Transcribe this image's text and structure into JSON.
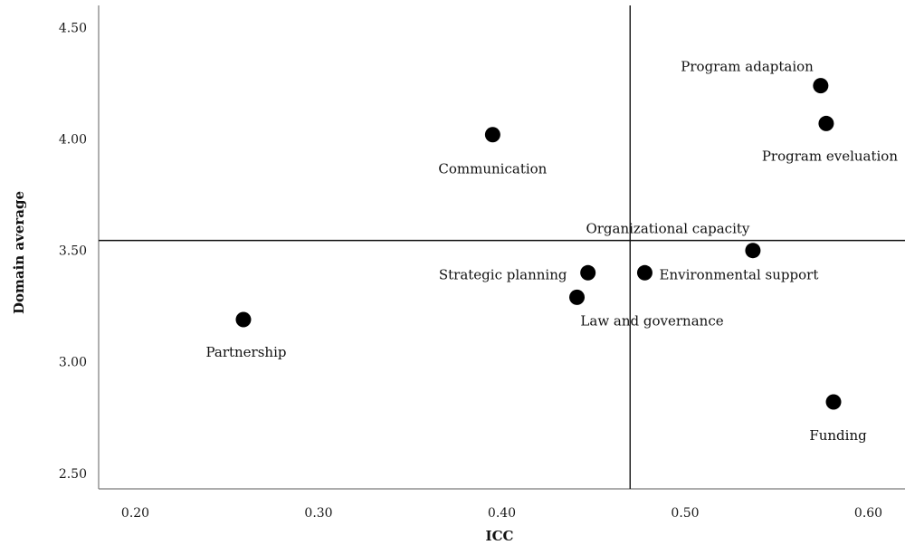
{
  "chart_data": {
    "type": "scatter",
    "xlabel": "ICC",
    "ylabel": "Domain average",
    "xlim": [
      0.18,
      0.62
    ],
    "ylim": [
      2.43,
      4.6
    ],
    "x_ticks": [
      "0.20",
      "0.30",
      "0.40",
      "0.50",
      "0.60"
    ],
    "y_ticks": [
      "2.50",
      "3.00",
      "3.50",
      "4.00",
      "4.50"
    ],
    "reference_lines": {
      "x": 0.47,
      "y": 3.545
    },
    "marker_color": "#000000",
    "points": [
      {
        "label": "Program adaptaion",
        "x": 0.574,
        "y": 4.24
      },
      {
        "label": "Program eveluation",
        "x": 0.577,
        "y": 4.07
      },
      {
        "label": "Communication",
        "x": 0.395,
        "y": 4.02
      },
      {
        "label": "Organizational capacity",
        "x": 0.537,
        "y": 3.5
      },
      {
        "label": "Strategic planning",
        "x": 0.447,
        "y": 3.4
      },
      {
        "label": "Environmental support",
        "x": 0.478,
        "y": 3.4
      },
      {
        "label": "Law and governance",
        "x": 0.441,
        "y": 3.29
      },
      {
        "label": "Partnership",
        "x": 0.259,
        "y": 3.19
      },
      {
        "label": "Funding",
        "x": 0.581,
        "y": 2.82
      }
    ]
  }
}
